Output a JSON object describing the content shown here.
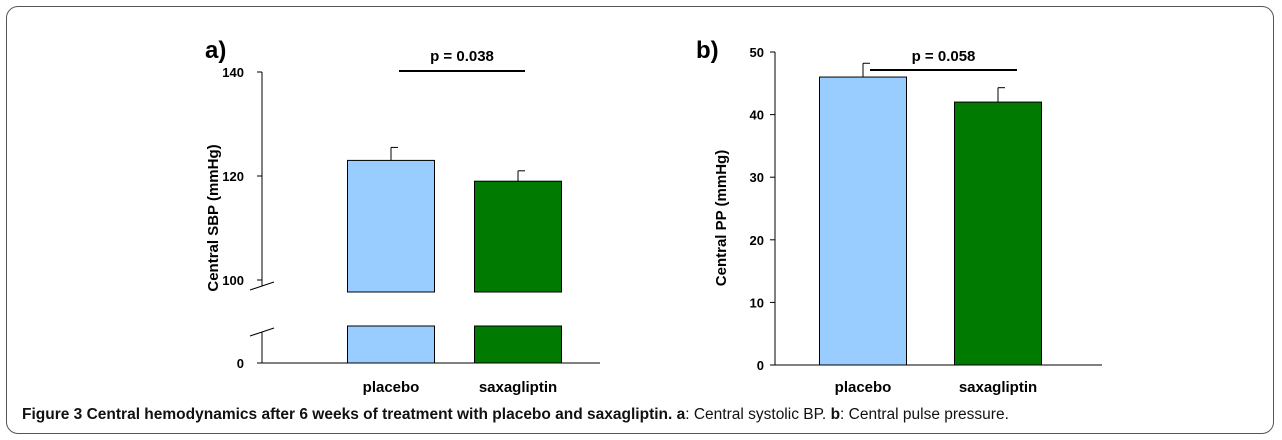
{
  "colors": {
    "placebo": "#99ccff",
    "saxagliptin": "#007a00",
    "axis": "#000000"
  },
  "chart_data": [
    {
      "type": "bar",
      "panel_label": "a)",
      "categories": [
        "placebo",
        "saxagliptin"
      ],
      "values": [
        123,
        119
      ],
      "errors": [
        2.5,
        2
      ],
      "ylabel": "Central SBP (mmHg)",
      "ylim": [
        0,
        140
      ],
      "axis_break": [
        0,
        100
      ],
      "yticks": [
        0,
        100,
        120,
        140
      ],
      "annotation": "p = 0.038",
      "grid": false
    },
    {
      "type": "bar",
      "panel_label": "b)",
      "categories": [
        "placebo",
        "saxagliptin"
      ],
      "values": [
        46,
        42
      ],
      "errors": [
        2.2,
        2.3
      ],
      "ylabel": "Central PP (mmHg)",
      "ylim": [
        0,
        50
      ],
      "yticks": [
        0,
        10,
        20,
        30,
        40,
        50
      ],
      "annotation": "p = 0.058",
      "grid": false
    }
  ],
  "caption": {
    "title": "Figure 3 Central hemodynamics after 6 weeks of treatment with placebo and saxagliptin.",
    "a_key": "a",
    "a_text": ": Central systolic BP. ",
    "b_key": "b",
    "b_text": ": Central pulse pressure."
  }
}
